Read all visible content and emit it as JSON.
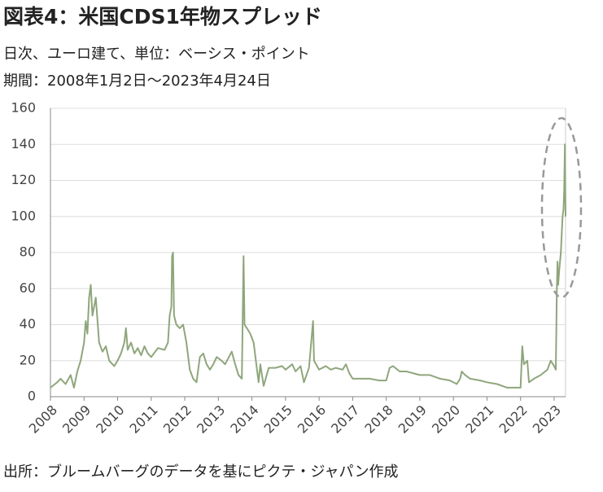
{
  "chart_data": {
    "type": "line",
    "title": "図表4：米国CDS1年物スプレッド",
    "subtitle": "日次、ユーロ建て、単位：ベーシス・ポイント",
    "period": "期間：2008年1月2日～2023年4月24日",
    "source": "出所：ブルームバーグのデータを基にピクテ・ジャパン作成",
    "x": [
      2008.0,
      2008.2,
      2008.3,
      2008.45,
      2008.6,
      2008.7,
      2008.8,
      2008.9,
      2009.0,
      2009.05,
      2009.1,
      2009.15,
      2009.2,
      2009.25,
      2009.35,
      2009.45,
      2009.55,
      2009.65,
      2009.75,
      2009.9,
      2010.0,
      2010.1,
      2010.2,
      2010.25,
      2010.3,
      2010.4,
      2010.5,
      2010.6,
      2010.7,
      2010.8,
      2010.9,
      2011.0,
      2011.2,
      2011.4,
      2011.5,
      2011.55,
      2011.6,
      2011.62,
      2011.65,
      2011.68,
      2011.75,
      2011.85,
      2011.95,
      2012.05,
      2012.15,
      2012.25,
      2012.35,
      2012.45,
      2012.55,
      2012.65,
      2012.75,
      2012.85,
      2012.95,
      2013.1,
      2013.2,
      2013.4,
      2013.5,
      2013.6,
      2013.7,
      2013.75,
      2013.78,
      2013.85,
      2013.95,
      2014.05,
      2014.15,
      2014.2,
      2014.25,
      2014.35,
      2014.5,
      2014.7,
      2014.9,
      2015.0,
      2015.2,
      2015.3,
      2015.45,
      2015.55,
      2015.7,
      2015.82,
      2015.85,
      2016.0,
      2016.2,
      2016.35,
      2016.5,
      2016.7,
      2016.8,
      2016.9,
      2017.0,
      2017.2,
      2017.5,
      2017.8,
      2018.0,
      2018.1,
      2018.2,
      2018.4,
      2018.6,
      2018.8,
      2019.0,
      2019.3,
      2019.6,
      2019.9,
      2020.1,
      2020.2,
      2020.25,
      2020.35,
      2020.5,
      2020.8,
      2021.0,
      2021.3,
      2021.6,
      2021.9,
      2022.0,
      2022.05,
      2022.1,
      2022.2,
      2022.25,
      2022.4,
      2022.6,
      2022.8,
      2022.9,
      2023.0,
      2023.05,
      2023.08,
      2023.1,
      2023.12,
      2023.15,
      2023.2,
      2023.25,
      2023.28,
      2023.3,
      2023.32,
      2023.34
    ],
    "series": [
      {
        "color": "#8fa67c",
        "values": [
          5,
          8,
          10,
          7,
          12,
          5,
          14,
          20,
          30,
          42,
          35,
          55,
          62,
          45,
          55,
          30,
          25,
          28,
          20,
          17,
          20,
          24,
          30,
          38,
          26,
          30,
          24,
          27,
          23,
          28,
          24,
          22,
          27,
          26,
          30,
          45,
          50,
          78,
          80,
          45,
          40,
          38,
          40,
          30,
          15,
          10,
          8,
          22,
          24,
          18,
          15,
          18,
          22,
          20,
          18,
          25,
          18,
          12,
          10,
          78,
          40,
          38,
          35,
          30,
          15,
          8,
          18,
          6,
          16,
          16,
          17,
          15,
          18,
          14,
          17,
          8,
          16,
          42,
          20,
          15,
          17,
          15,
          16,
          15,
          18,
          13,
          10,
          10,
          10,
          9,
          9,
          16,
          17,
          14,
          14,
          13,
          12,
          12,
          10,
          9,
          7,
          10,
          14,
          12,
          10,
          9,
          8,
          7,
          5,
          5,
          5,
          28,
          18,
          20,
          8,
          10,
          12,
          15,
          20,
          17,
          15,
          60,
          75,
          62,
          70,
          80,
          100,
          104,
          115,
          140,
          100
        ]
      }
    ],
    "xlim": [
      2008,
      2023.34
    ],
    "xticks": [
      2008,
      2009,
      2010,
      2011,
      2012,
      2013,
      2014,
      2015,
      2016,
      2017,
      2018,
      2019,
      2020,
      2021,
      2022,
      2023
    ],
    "ylim": [
      0,
      160
    ],
    "yticks": [
      0,
      20,
      40,
      60,
      80,
      100,
      120,
      140,
      160
    ],
    "grid": true
  }
}
